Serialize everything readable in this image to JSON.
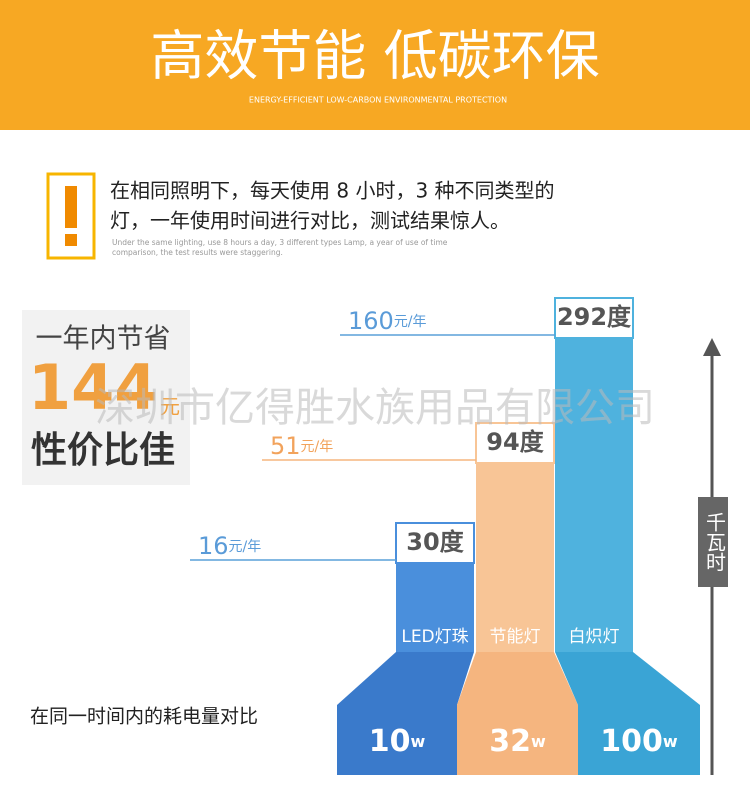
{
  "header": {
    "title": "高效节能 低碳环保",
    "subtitle": "ENERGY-EFFICIENT LOW-CARBON ENVIRONMENTAL PROTECTION"
  },
  "notice": {
    "lines": [
      "在相同照明下，每天使用 8 小时，3 种不同类型的",
      "灯，一年使用时间进行对比，测试结果惊人。"
    ],
    "english": [
      "Under the same lighting, use 8 hours a day, 3 different types Lamp, a year of use of time",
      "comparison, the test results were staggering."
    ]
  },
  "savings": {
    "label": "一年内节省",
    "amount": 144,
    "unit": "元",
    "tagline": "性价比佳"
  },
  "watermark": "深圳市亿得胜水族用品有限公司",
  "bars": [
    {
      "name": "LED灯珠",
      "energy": 30,
      "energy_unit": "度",
      "cost": 16,
      "cost_unit": "元/年",
      "power": 10,
      "power_unit": "w"
    },
    {
      "name": "节能灯",
      "energy": 94,
      "energy_unit": "度",
      "cost": 51,
      "cost_unit": "元/年",
      "power": 32,
      "power_unit": "w"
    },
    {
      "name": "白炽灯",
      "energy": 292,
      "energy_unit": "度",
      "cost": 160,
      "cost_unit": "元/年",
      "power": 100,
      "power_unit": "w"
    }
  ],
  "unit_label": "千瓦时",
  "caption": "在同一时间内的耗电量对比"
}
